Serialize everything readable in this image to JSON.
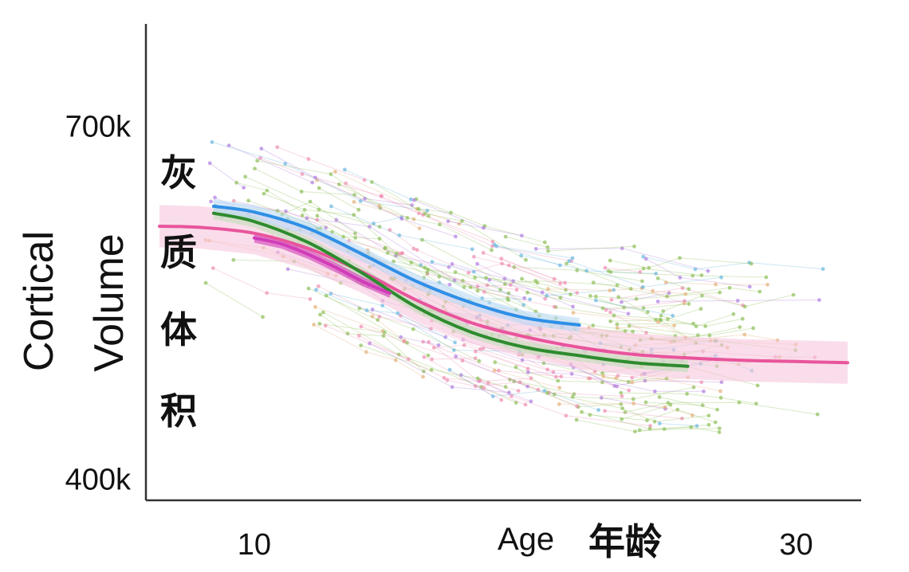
{
  "chart_data": {
    "type": "scatter",
    "title": "",
    "xlabel": "Age",
    "xlabel_cn": "年龄",
    "ylabel_line1": "Cortical",
    "ylabel_line2": "Volume",
    "ylabel_cn": [
      "灰",
      "质",
      "体",
      "积"
    ],
    "xlim": [
      6,
      32.4
    ],
    "ylim": [
      382000,
      787000
    ],
    "x_ticks": [
      {
        "value": 10,
        "label": "10"
      },
      {
        "value": 30,
        "label": "30"
      }
    ],
    "y_ticks": [
      {
        "value": 400000,
        "label": "400k"
      },
      {
        "value": 700000,
        "label": "700k"
      }
    ],
    "grid": false,
    "legend": "none",
    "description_of_points": "Longitudinal individual measurements (connected faint dots) colored by cohort",
    "colors": {
      "blue": "#2f8fe6",
      "green": "#2e8b2e",
      "magenta": "#d13cb8",
      "pink": "#e8559c",
      "pink_ci": "#f7c6dc",
      "blue_ci": "#b9dbf6",
      "green_ci": "#bfe0b8",
      "point_green": "#8fbf5a",
      "point_blue": "#6bb7e0",
      "point_purple": "#b07fe0",
      "point_pink": "#ef8fb2",
      "point_orange": "#e5b07a"
    },
    "series": [
      {
        "color_key": "blue",
        "x": [
          8.5,
          10,
          12,
          14,
          16,
          18,
          20,
          22
        ],
        "y": [
          632000,
          627000,
          613000,
          591000,
          568000,
          550000,
          537000,
          531000
        ],
        "ci": 6000
      },
      {
        "color_key": "green",
        "x": [
          8.5,
          10,
          12,
          14,
          16,
          18,
          20,
          22,
          24,
          26
        ],
        "y": [
          626000,
          619000,
          601000,
          575000,
          546000,
          525000,
          512000,
          505000,
          499000,
          496000
        ],
        "ci": 5000
      },
      {
        "color_key": "magenta",
        "x": [
          10,
          11,
          12,
          13,
          14,
          15
        ],
        "y": [
          605000,
          600000,
          591000,
          580000,
          568000,
          558000
        ],
        "ci": 4000
      },
      {
        "color_key": "pink",
        "x": [
          6.5,
          8,
          10,
          12,
          14,
          16,
          18,
          20,
          22,
          24,
          26,
          28,
          30,
          31.9
        ],
        "y": [
          615000,
          614000,
          609000,
          596000,
          576000,
          552000,
          533000,
          521000,
          512000,
          506000,
          503000,
          501000,
          500000,
          499000
        ],
        "ci": 18000
      }
    ]
  }
}
